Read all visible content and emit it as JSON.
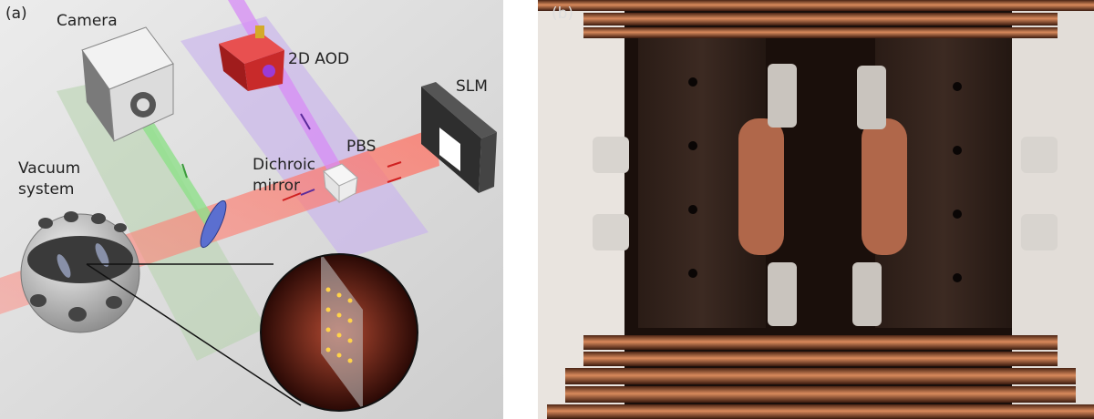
{
  "panels": {
    "a": "(a)",
    "b": "(b)"
  },
  "labels": {
    "camera": "Camera",
    "aod": "2D AOD",
    "slm": "SLM",
    "pbs": "PBS",
    "dichroic": [
      "Dichroic",
      "mirror"
    ],
    "vacuum": [
      "Vacuum",
      "system"
    ]
  }
}
